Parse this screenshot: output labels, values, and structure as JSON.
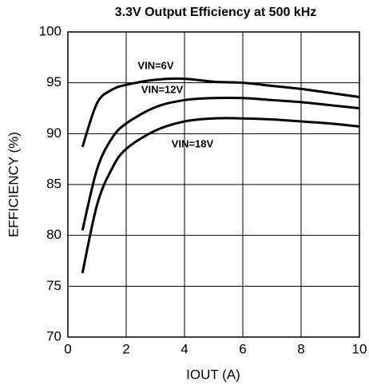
{
  "chart_data": {
    "type": "line",
    "title": "3.3V Output Efficiency at 500 kHz",
    "x_label": "IOUT (A)",
    "y_label": "EFFICIENCY (%)",
    "x": [
      0.5,
      1,
      1.5,
      2,
      3,
      4,
      5,
      6,
      7,
      8,
      9,
      10
    ],
    "series": [
      {
        "name": "VIN=6V",
        "color": "#000000",
        "values": [
          88.7,
          93.0,
          94.3,
          94.8,
          95.3,
          95.4,
          95.1,
          95.0,
          94.7,
          94.4,
          94.0,
          93.6
        ]
      },
      {
        "name": "VIN=12V",
        "color": "#000000",
        "values": [
          80.5,
          86.5,
          89.5,
          91.0,
          92.6,
          93.3,
          93.5,
          93.5,
          93.3,
          93.1,
          92.8,
          92.5
        ]
      },
      {
        "name": "VIN=18V",
        "color": "#000000",
        "values": [
          76.3,
          83.0,
          86.5,
          88.5,
          90.3,
          91.2,
          91.5,
          91.5,
          91.4,
          91.2,
          91.0,
          90.7
        ]
      }
    ],
    "xlim": [
      0,
      10
    ],
    "xticks": [
      0,
      2,
      4,
      6,
      8,
      10
    ],
    "ylim": [
      70,
      100
    ],
    "yticks": [
      70,
      75,
      80,
      85,
      90,
      95,
      100
    ],
    "grid": true
  }
}
